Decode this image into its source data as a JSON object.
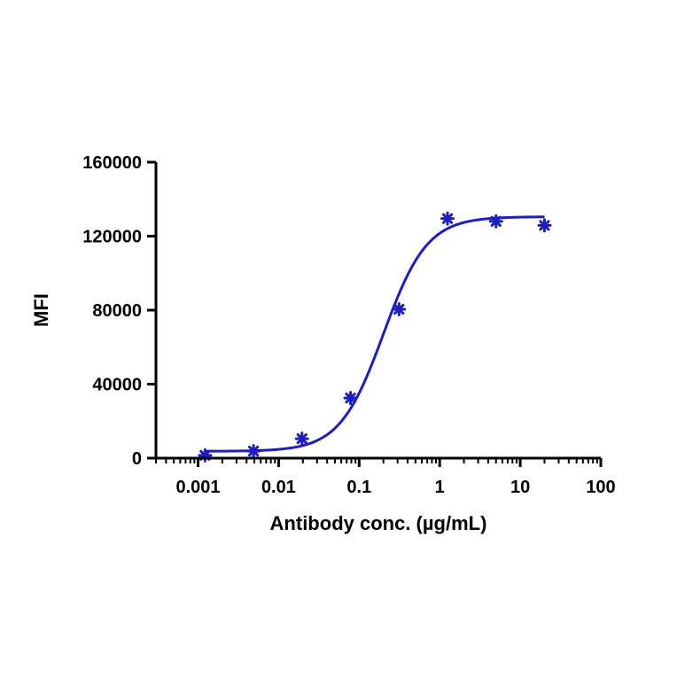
{
  "chart_data": {
    "type": "scatter",
    "title": "",
    "xlabel": "Antibody conc. (µg/mL)",
    "ylabel": "MFI",
    "x_scale": "log",
    "xlim": [
      0.0003,
      100
    ],
    "ylim": [
      0,
      160000
    ],
    "x_ticks": [
      {
        "value": 0.001,
        "label": "0.001"
      },
      {
        "value": 0.01,
        "label": "0.01"
      },
      {
        "value": 0.1,
        "label": "0.1"
      },
      {
        "value": 1,
        "label": "1"
      },
      {
        "value": 10,
        "label": "10"
      },
      {
        "value": 100,
        "label": "100"
      }
    ],
    "y_ticks": [
      {
        "value": 0,
        "label": "0"
      },
      {
        "value": 40000,
        "label": "40000"
      },
      {
        "value": 80000,
        "label": "80000"
      },
      {
        "value": 120000,
        "label": "120000"
      },
      {
        "value": 160000,
        "label": "160000"
      }
    ],
    "grid": false,
    "series": [
      {
        "color": "#1e1ebe",
        "marker": "asterisk",
        "x": [
          0.00122,
          0.00488,
          0.0195,
          0.0781,
          0.3125,
          1.25,
          5,
          20
        ],
        "y": [
          1500,
          3800,
          10500,
          32500,
          80500,
          129500,
          128000,
          125800
        ]
      }
    ],
    "fit_curve": {
      "color": "#1e1ebe",
      "model": "4PL",
      "bottom": 3700,
      "top": 130500,
      "ec50": 0.2,
      "hill": 1.6,
      "x_range": [
        0.00122,
        20
      ]
    }
  }
}
